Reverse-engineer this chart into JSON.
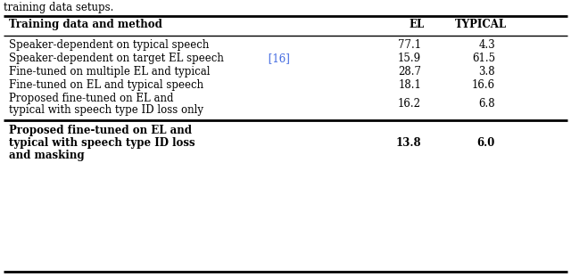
{
  "caption": "training data setups.",
  "header": [
    "Training data and method",
    "EL",
    "TYPICAL"
  ],
  "rows": [
    [
      "Speaker-dependent on typical speech",
      "77.1",
      "4.3",
      false
    ],
    [
      "Speaker-dependent on target EL speech",
      "15.9",
      "61.5",
      true
    ],
    [
      "Fine-tuned on multiple EL and typical",
      "28.7",
      "3.8",
      false
    ],
    [
      "Fine-tuned on EL and typical speech",
      "18.1",
      "16.6",
      false
    ],
    [
      "Proposed fine-tuned on EL and\ntypical with speech type ID loss only",
      "16.2",
      "6.8",
      false
    ]
  ],
  "last_row": [
    "Proposed fine-tuned on EL and\ntypical with speech type ID loss\nand masking",
    "13.8",
    "6.0"
  ],
  "ref16_color": "#4169e1",
  "bg_color": "#ffffff",
  "text_color": "#000000"
}
